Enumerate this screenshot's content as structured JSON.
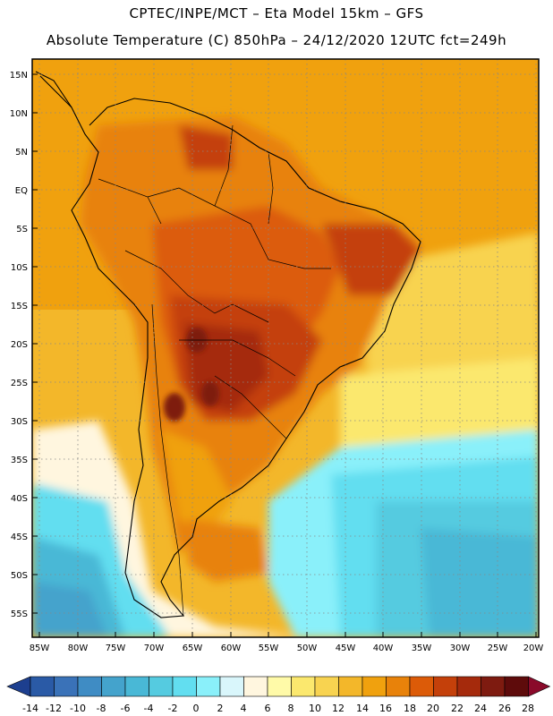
{
  "header": {
    "line1": "CPTEC/INPE/MCT –  Eta Model 15km – GFS",
    "line2": "Absolute Temperature (C) 850hPa – 24/12/2020 12UTC fct=249h"
  },
  "map": {
    "lat_labels": [
      "15N",
      "10N",
      "5N",
      "EQ",
      "5S",
      "10S",
      "15S",
      "20S",
      "25S",
      "30S",
      "35S",
      "40S",
      "45S",
      "50S",
      "55S"
    ],
    "lon_labels": [
      "85W",
      "80W",
      "75W",
      "70W",
      "65W",
      "60W",
      "55W",
      "50W",
      "45W",
      "40W",
      "35W",
      "30W",
      "25W",
      "20W"
    ],
    "lat_values": [
      15,
      10,
      5,
      0,
      -5,
      -10,
      -15,
      -20,
      -25,
      -30,
      -35,
      -40,
      -45,
      -50,
      -55
    ],
    "lon_values": [
      -85,
      -80,
      -75,
      -70,
      -65,
      -60,
      -55,
      -50,
      -45,
      -40,
      -35,
      -30,
      -25,
      -20
    ]
  },
  "colorbar": {
    "labels": [
      "-14",
      "-12",
      "-10",
      "-8",
      "-6",
      "-4",
      "-2",
      "0",
      "2",
      "4",
      "6",
      "8",
      "10",
      "12",
      "14",
      "16",
      "18",
      "20",
      "22",
      "24",
      "26",
      "28"
    ],
    "colors": [
      "#1d3f8f",
      "#2a5aa6",
      "#3a72b8",
      "#3f8cc4",
      "#44a3cc",
      "#49b8d6",
      "#55cbe0",
      "#62def0",
      "#8af0fa",
      "#d9f6fb",
      "#fff6df",
      "#fffaa8",
      "#fbe86e",
      "#f8d350",
      "#f3b72a",
      "#f0a10e",
      "#e8820a",
      "#dc5b08",
      "#c4400a",
      "#a52a0c",
      "#7e1b10",
      "#5e0b0b",
      "#8a0a2a"
    ]
  }
}
